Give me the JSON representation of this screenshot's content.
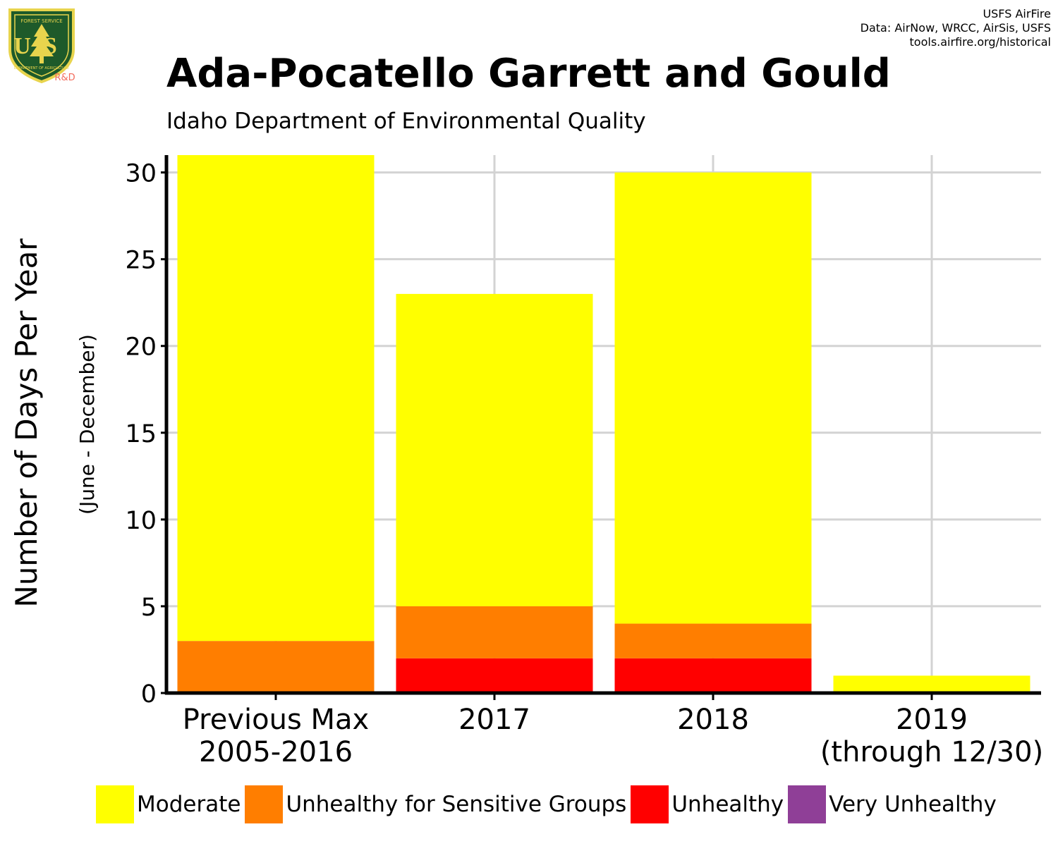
{
  "header": {
    "title": "Ada-Pocatello Garrett and Gould",
    "subtitle": "Idaho Department of Environmental Quality",
    "credits": [
      "USFS AirFire",
      "Data: AirNow, WRCC, AirSis, USFS",
      "tools.airfire.org/historical"
    ]
  },
  "logo": {
    "top_text": "FOREST SERVICE",
    "letters": "US",
    "bottom_text": "DEPARTMENT OF AGRICULTURE",
    "rd": "R&D"
  },
  "chart_data": {
    "type": "bar",
    "stacked": true,
    "categories": [
      [
        "Previous Max",
        "2005-2016"
      ],
      [
        "2017"
      ],
      [
        "2018"
      ],
      [
        "2019",
        "(through 12/30)"
      ]
    ],
    "series": [
      {
        "name": "Unhealthy",
        "color": "#ff0000",
        "values": [
          0,
          2,
          2,
          0
        ]
      },
      {
        "name": "Unhealthy for Sensitive Groups",
        "color": "#ff7e00",
        "values": [
          3,
          3,
          2,
          0
        ]
      },
      {
        "name": "Moderate",
        "color": "#ffff00",
        "values": [
          28,
          18,
          26,
          1
        ]
      },
      {
        "name": "Very Unhealthy",
        "color": "#8f3f97",
        "values": [
          0,
          0,
          0,
          0
        ]
      }
    ],
    "ylabel": "Number of Days Per Year",
    "ylabel_sub": "(June - December)",
    "yticks": [
      0,
      5,
      10,
      15,
      20,
      25,
      30
    ],
    "ylim": [
      0,
      31
    ],
    "grid": true,
    "legend": {
      "placement": "bottom",
      "items": [
        {
          "label": "Moderate",
          "color": "#ffff00"
        },
        {
          "label": "Unhealthy for Sensitive Groups",
          "color": "#ff7e00"
        },
        {
          "label": "Unhealthy",
          "color": "#ff0000"
        },
        {
          "label": "Very Unhealthy",
          "color": "#8f3f97"
        }
      ]
    }
  }
}
